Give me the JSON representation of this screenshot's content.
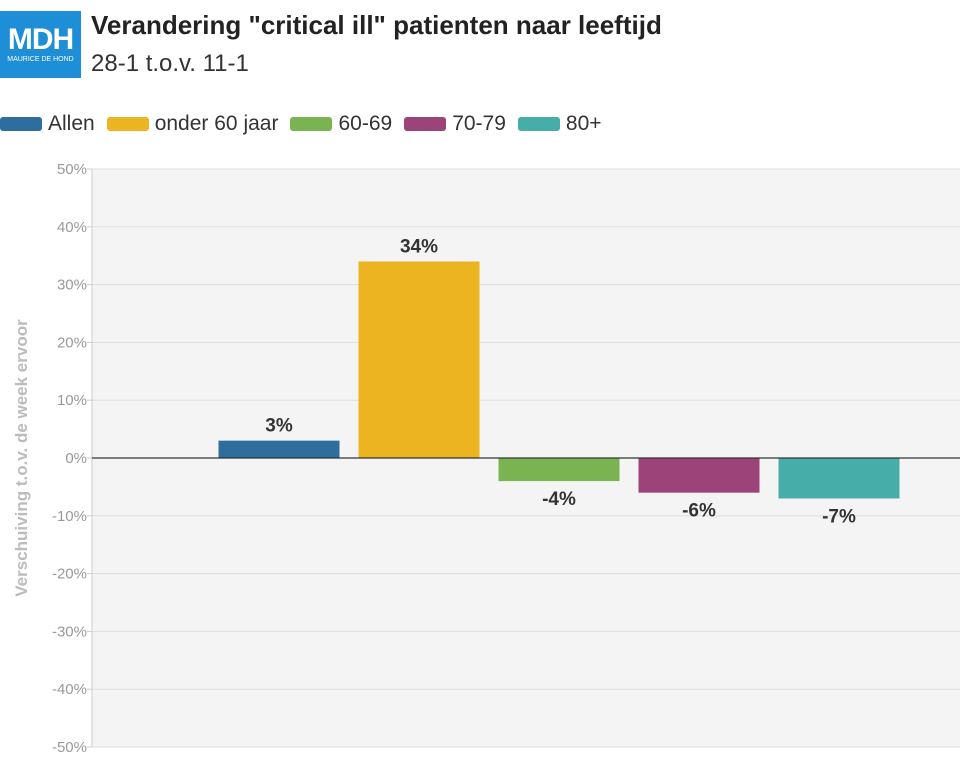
{
  "logo": {
    "main": "MDH",
    "sub": "MAURICE DE HOND"
  },
  "chart_data": {
    "type": "bar",
    "title": "Verandering \"critical ill\" patienten naar leeftijd",
    "subtitle": "28-1 t.o.v. 11-1",
    "ylabel": "Verschuiving t.o.v. de week ervoor",
    "xlabel": "",
    "ylim": [
      -50,
      50
    ],
    "yticks": [
      50,
      40,
      30,
      20,
      10,
      0,
      -10,
      -20,
      -30,
      -40,
      -50
    ],
    "tick_suffix": "%",
    "grid": true,
    "legend_position": "top-left",
    "series": [
      {
        "name": "Allen",
        "value": 3,
        "label": "3%",
        "color": "#2e6e9e"
      },
      {
        "name": "onder 60 jaar",
        "value": 34,
        "label": "34%",
        "color": "#edb421"
      },
      {
        "name": "60-69",
        "value": -4,
        "label": "-4%",
        "color": "#7ab452"
      },
      {
        "name": "70-79",
        "value": -6,
        "label": "-6%",
        "color": "#9c4479"
      },
      {
        "name": "80+",
        "value": -7,
        "label": "-7%",
        "color": "#47ada9"
      }
    ]
  }
}
